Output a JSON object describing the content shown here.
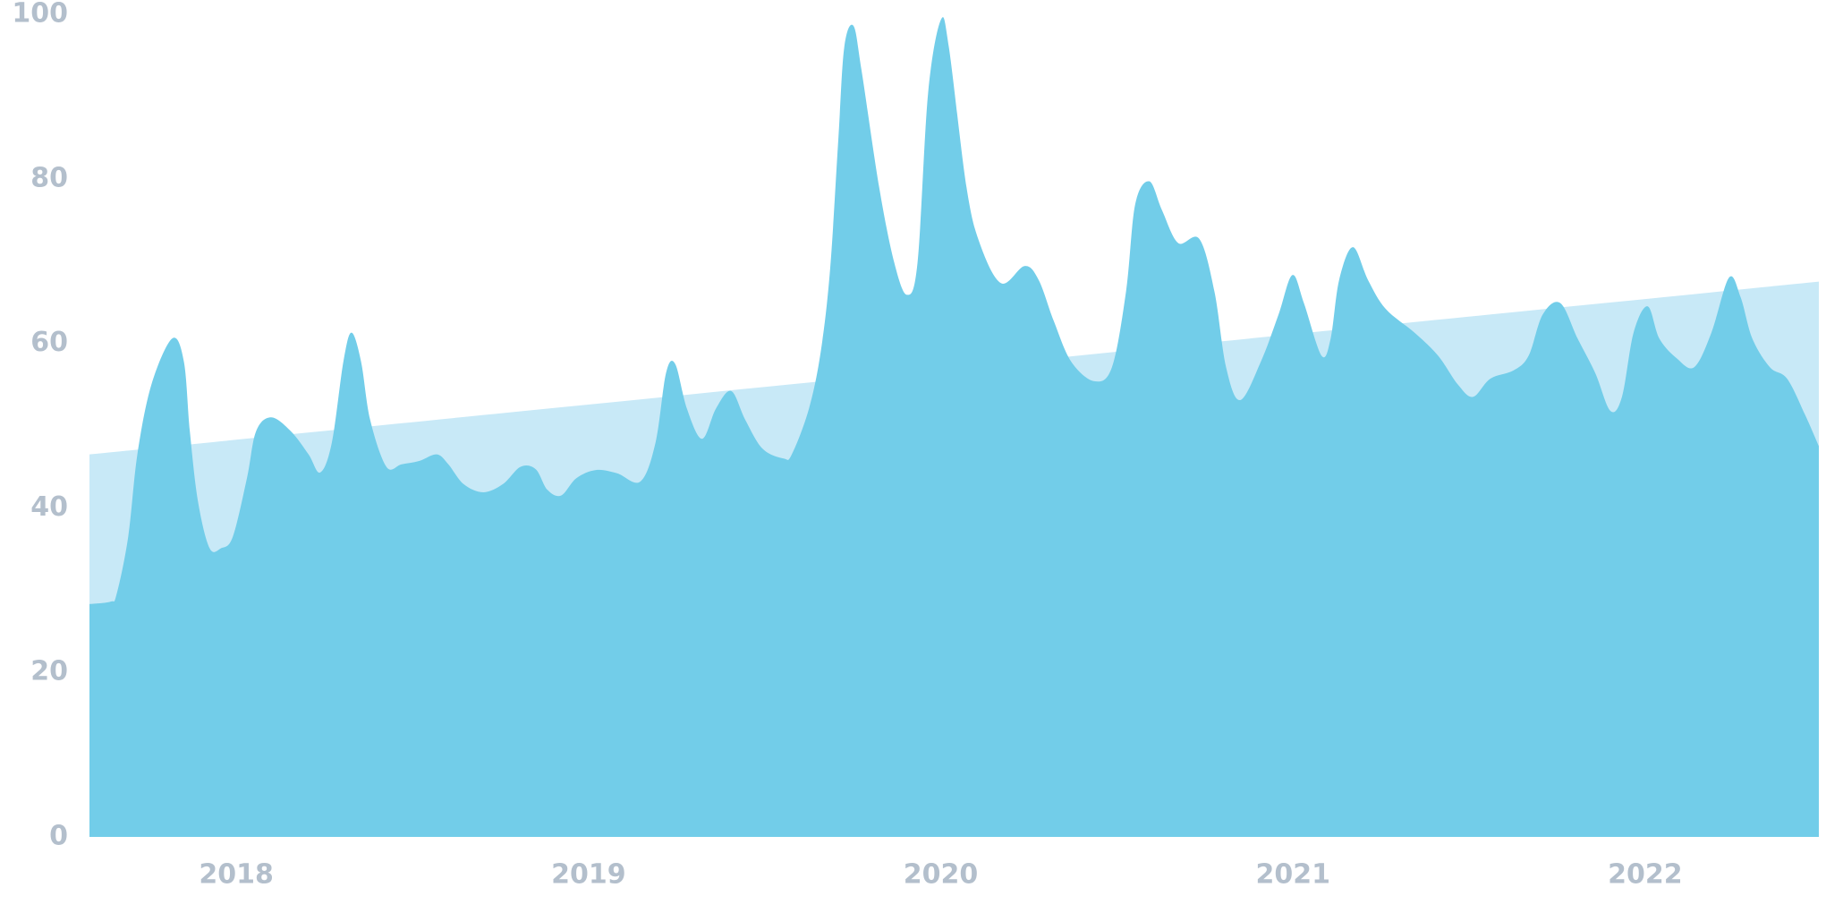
{
  "chart_data": {
    "type": "area",
    "xlim": [
      2017.583,
      2022.493
    ],
    "xticks": [
      2018,
      2019,
      2020,
      2021,
      2022
    ],
    "ylim": [
      0,
      100
    ],
    "yticks": [
      0,
      20,
      40,
      60,
      80,
      100
    ],
    "grid": false,
    "series": [
      {
        "color": "#c8e9f7",
        "x": [
          2017.583,
          2022.493
        ],
        "values": [
          46.5,
          67.5
        ]
      },
      {
        "color": "#72cde9",
        "x": [
          2017.583,
          2017.643,
          2017.66,
          2017.693,
          2017.719,
          2017.759,
          2017.818,
          2017.851,
          2017.868,
          2017.891,
          2017.924,
          2017.957,
          2017.99,
          2018.03,
          2018.056,
          2018.099,
          2018.155,
          2018.205,
          2018.238,
          2018.271,
          2018.304,
          2018.327,
          2018.354,
          2018.38,
          2018.426,
          2018.469,
          2018.519,
          2018.569,
          2018.602,
          2018.645,
          2018.701,
          2018.757,
          2018.807,
          2018.85,
          2018.883,
          2018.922,
          2018.965,
          2019.021,
          2019.081,
          2019.147,
          2019.19,
          2019.22,
          2019.246,
          2019.279,
          2019.322,
          2019.362,
          2019.405,
          2019.445,
          2019.494,
          2019.554,
          2019.577,
          2019.626,
          2019.66,
          2019.686,
          2019.709,
          2019.726,
          2019.752,
          2019.775,
          2019.825,
          2019.868,
          2019.904,
          2019.934,
          2019.964,
          2020.0,
          2020.023,
          2020.073,
          2020.112,
          2020.172,
          2020.238,
          2020.278,
          2020.321,
          2020.37,
          2020.436,
          2020.486,
          2020.526,
          2020.552,
          2020.592,
          2020.628,
          2020.674,
          2020.734,
          2020.777,
          2020.81,
          2020.85,
          2020.909,
          2020.959,
          2020.998,
          2021.031,
          2021.081,
          2021.107,
          2021.131,
          2021.17,
          2021.213,
          2021.263,
          2021.345,
          2021.412,
          2021.468,
          2021.511,
          2021.56,
          2021.626,
          2021.669,
          2021.709,
          2021.759,
          2021.808,
          2021.858,
          2021.901,
          2021.934,
          2021.967,
          2022.007,
          2022.04,
          2022.089,
          2022.139,
          2022.188,
          2022.238,
          2022.271,
          2022.304,
          2022.354,
          2022.403,
          2022.453,
          2022.493
        ],
        "values": [
          28.3,
          28.6,
          29.5,
          36.5,
          46.5,
          55,
          60.6,
          57.8,
          49.3,
          40.8,
          35.1,
          35.1,
          36.5,
          43.6,
          49.3,
          51,
          49.3,
          46.5,
          44.3,
          47.9,
          57.8,
          61.3,
          57.8,
          50.7,
          45,
          45.3,
          45.7,
          46.5,
          45.3,
          42.9,
          41.9,
          42.9,
          45,
          44.7,
          42.2,
          41.5,
          43.6,
          44.6,
          44.2,
          43.2,
          47.9,
          56.4,
          57.5,
          52.1,
          48.4,
          52.1,
          54.2,
          50.7,
          47.2,
          46,
          46.5,
          52.1,
          59.2,
          69.1,
          84.7,
          96,
          98.6,
          93.2,
          79,
          69.8,
          65.9,
          69.8,
          90.4,
          99.3,
          96,
          79,
          72,
          67.3,
          69.4,
          67.7,
          62.7,
          57.8,
          55.4,
          57.1,
          66.3,
          76.9,
          79.7,
          76.2,
          72.2,
          72.7,
          66.3,
          57.1,
          53.1,
          57.8,
          63.5,
          68.3,
          64.9,
          58.5,
          60.6,
          67.7,
          71.7,
          67.7,
          64.2,
          61.3,
          58.5,
          55,
          53.5,
          55.7,
          56.7,
          58.5,
          63.5,
          64.9,
          60.6,
          56.4,
          51.8,
          53.5,
          61.3,
          64.5,
          60.6,
          58.2,
          57.1,
          61.3,
          68,
          65.6,
          60.6,
          57.1,
          55.7,
          51.4,
          47.5
        ]
      }
    ]
  }
}
